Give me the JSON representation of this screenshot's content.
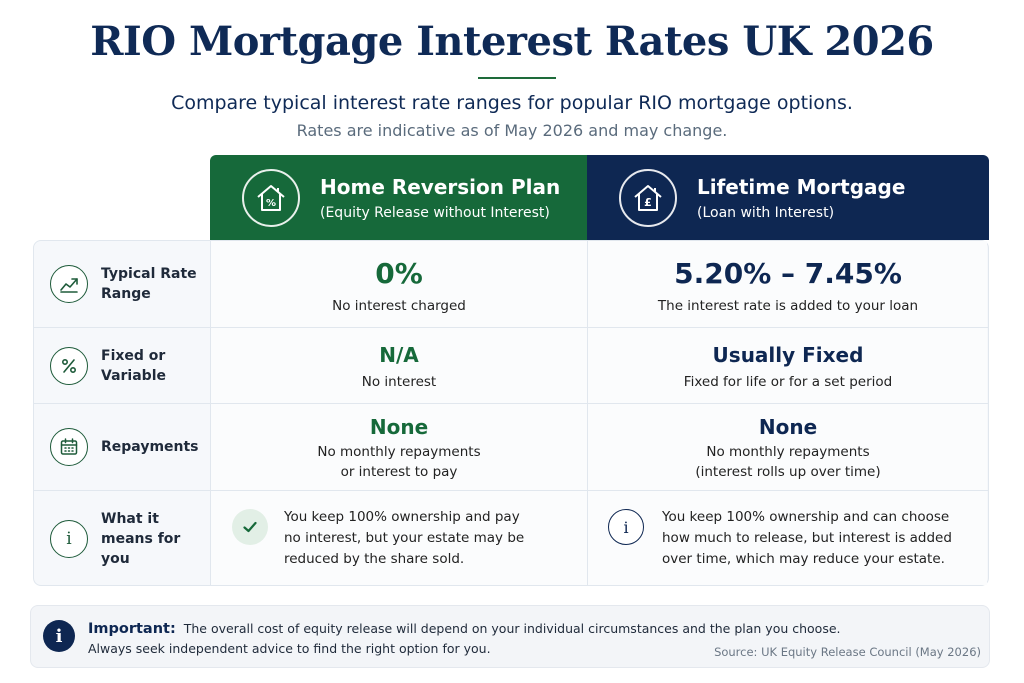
{
  "header": {
    "title": "RIO Mortgage Interest Rates UK 2026",
    "subtitle": "Compare typical interest rate ranges for popular RIO mortgage options.",
    "note": "Rates are indicative as of May 2026 and may change."
  },
  "columns": [
    {
      "title": "Home Reversion Plan",
      "subtitle": "(Equity Release without Interest)",
      "icon": "house-percent-icon"
    },
    {
      "title": "Lifetime Mortgage",
      "subtitle": "(Loan with Interest)",
      "icon": "house-pound-icon"
    }
  ],
  "rows": [
    {
      "label": "Typical Rate Range",
      "icon": "trend-up-icon",
      "hrp": {
        "value": "0%",
        "detail": "No interest charged"
      },
      "lm": {
        "value": "5.20% – 7.45%",
        "detail": "The interest rate is added to your loan"
      }
    },
    {
      "label": "Fixed or Variable",
      "icon": "percent-icon",
      "hrp": {
        "value": "N/A",
        "detail": "No interest"
      },
      "lm": {
        "value": "Usually Fixed",
        "detail": "Fixed for life or for a set period"
      }
    },
    {
      "label": "Repayments",
      "icon": "calendar-icon",
      "hrp": {
        "value": "None",
        "detail_1": "No monthly repayments",
        "detail_2": "or interest to pay"
      },
      "lm": {
        "value": "None",
        "detail_1": "No monthly repayments",
        "detail_2": "(interest rolls up over time)"
      }
    },
    {
      "label": "What it means for you",
      "icon": "info-icon",
      "hrp": {
        "lines": [
          "You keep 100% ownership and pay",
          "no interest, but your estate may be",
          "reduced by the share sold."
        ]
      },
      "lm": {
        "lines": [
          "You keep 100% ownership and can choose",
          "how much to release, but interest is added",
          "over time, which may reduce your estate."
        ]
      }
    }
  ],
  "important": {
    "label": "Important:",
    "line_1": "The overall cost of equity release will depend on your individual circumstances and the plan you choose.",
    "line_2": "Always seek independent advice to find the right option for you.",
    "source": "Source: UK Equity Release Council (May 2026)"
  },
  "colors": {
    "green": "#16693a",
    "navy": "#0e2752"
  }
}
